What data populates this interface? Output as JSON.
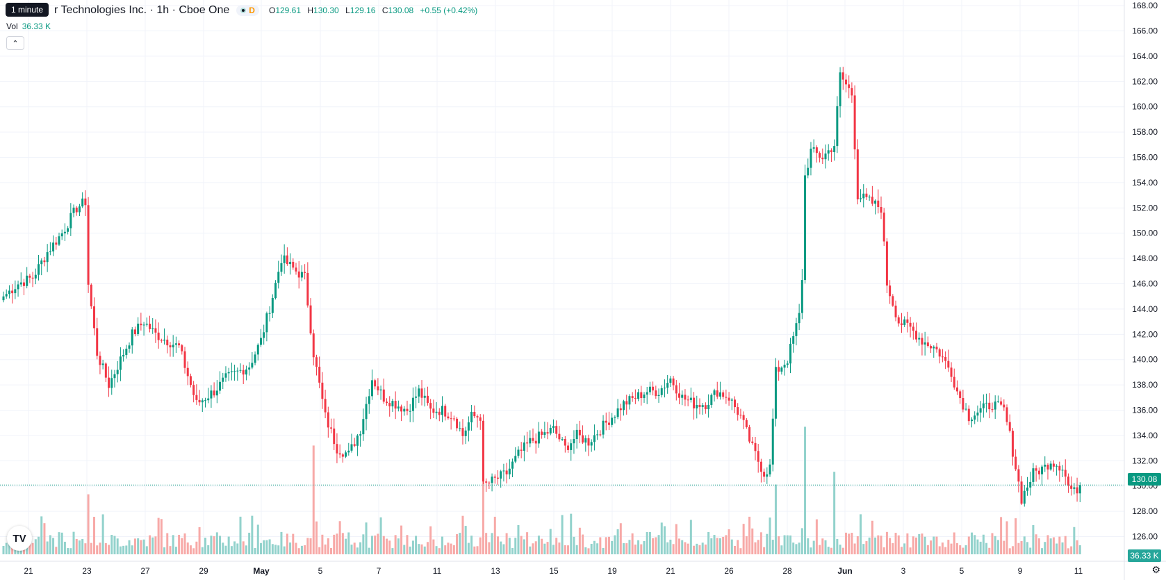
{
  "legend": {
    "symbol_name": "r Technologies Inc. · 1h · Cboe One",
    "tooltip": "1 minute",
    "status_letter": "D",
    "open_label": "O",
    "open": "129.61",
    "high_label": "H",
    "high": "130.30",
    "low_label": "L",
    "low": "129.16",
    "close_label": "C",
    "close": "130.08",
    "change": "+0.55 (+0.42%)"
  },
  "volume_legend": {
    "label": "Vol",
    "value": "36.33 K"
  },
  "price_tag": "130.08",
  "volume_tag": "36.33 K",
  "colors": {
    "up": "#089981",
    "down": "#f23645",
    "up_vol": "#92d2cc",
    "down_vol": "#f7a9a7",
    "grid": "#f0f3fa",
    "text": "#131722"
  },
  "icons": {
    "logo": "tradingview-logo-icon",
    "collapse": "chevron-up-icon",
    "settings": "gear-icon"
  },
  "chart_data": {
    "type": "candlestick",
    "y_axis_ticks": [
      "126.00",
      "128.00",
      "130.00",
      "132.00",
      "134.00",
      "136.00",
      "138.00",
      "140.00",
      "142.00",
      "144.00",
      "146.00",
      "148.00",
      "150.00",
      "152.00",
      "154.00",
      "156.00",
      "158.00",
      "160.00",
      "162.00",
      "164.00",
      "166.00",
      "168.00"
    ],
    "ylim": [
      124.6,
      168.2
    ],
    "x_axis_labels": [
      "21",
      "23",
      "27",
      "29",
      "May",
      "5",
      "7",
      "11",
      "13",
      "15",
      "19",
      "21",
      "26",
      "28",
      "Jun",
      "3",
      "5",
      "9",
      "11"
    ],
    "last_price": 130.08,
    "series": [
      {
        "name": "price",
        "kind": "ohlc",
        "anchors": [
          [
            0,
            145.0
          ],
          [
            5,
            146.0
          ],
          [
            10,
            146.5
          ],
          [
            15,
            148.5
          ],
          [
            20,
            150.0
          ],
          [
            25,
            152.0
          ],
          [
            28,
            152.5
          ],
          [
            29,
            146.0
          ],
          [
            32,
            140.5
          ],
          [
            36,
            138.0
          ],
          [
            40,
            140.0
          ],
          [
            44,
            142.0
          ],
          [
            48,
            143.0
          ],
          [
            52,
            142.0
          ],
          [
            56,
            141.5
          ],
          [
            60,
            141.0
          ],
          [
            66,
            136.5
          ],
          [
            72,
            137.5
          ],
          [
            76,
            138.5
          ],
          [
            80,
            139.0
          ],
          [
            84,
            139.5
          ],
          [
            88,
            141.5
          ],
          [
            92,
            145.0
          ],
          [
            95,
            148.0
          ],
          [
            100,
            147.0
          ],
          [
            103,
            146.5
          ],
          [
            106,
            140.5
          ],
          [
            110,
            135.5
          ],
          [
            114,
            133.0
          ],
          [
            118,
            132.5
          ],
          [
            122,
            134.5
          ],
          [
            126,
            138.5
          ],
          [
            130,
            137.0
          ],
          [
            134,
            136.5
          ],
          [
            138,
            136.0
          ],
          [
            142,
            137.5
          ],
          [
            146,
            136.0
          ],
          [
            150,
            136.0
          ],
          [
            154,
            135.5
          ],
          [
            157,
            134.0
          ],
          [
            160,
            135.5
          ],
          [
            163,
            135.5
          ],
          [
            164,
            130.0
          ],
          [
            168,
            130.5
          ],
          [
            172,
            131.0
          ],
          [
            176,
            132.5
          ],
          [
            180,
            133.5
          ],
          [
            184,
            134.0
          ],
          [
            188,
            134.5
          ],
          [
            192,
            133.0
          ],
          [
            196,
            134.0
          ],
          [
            200,
            133.5
          ],
          [
            204,
            134.5
          ],
          [
            208,
            135.5
          ],
          [
            212,
            136.5
          ],
          [
            216,
            137.0
          ],
          [
            220,
            137.5
          ],
          [
            224,
            137.5
          ],
          [
            228,
            138.5
          ],
          [
            232,
            137.0
          ],
          [
            236,
            136.5
          ],
          [
            240,
            136.5
          ],
          [
            244,
            137.5
          ],
          [
            248,
            137.0
          ],
          [
            252,
            135.5
          ],
          [
            256,
            133.0
          ],
          [
            260,
            131.0
          ],
          [
            262,
            131.5
          ],
          [
            264,
            139.0
          ],
          [
            268,
            140.0
          ],
          [
            272,
            143.5
          ],
          [
            273,
            146.5
          ],
          [
            274,
            154.5
          ],
          [
            276,
            156.5
          ],
          [
            280,
            156.0
          ],
          [
            284,
            157.0
          ],
          [
            286,
            162.5
          ],
          [
            290,
            161.0
          ],
          [
            292,
            153.0
          ],
          [
            296,
            152.5
          ],
          [
            300,
            152.0
          ],
          [
            302,
            146.0
          ],
          [
            306,
            143.0
          ],
          [
            310,
            142.5
          ],
          [
            314,
            141.5
          ],
          [
            318,
            141.0
          ],
          [
            320,
            140.5
          ],
          [
            324,
            139.0
          ],
          [
            326,
            137.5
          ],
          [
            330,
            135.5
          ],
          [
            334,
            136.0
          ],
          [
            338,
            136.5
          ],
          [
            342,
            136.0
          ],
          [
            344,
            134.0
          ],
          [
            346,
            131.5
          ],
          [
            348,
            129.0
          ],
          [
            352,
            131.0
          ],
          [
            356,
            131.5
          ],
          [
            358,
            132.0
          ],
          [
            362,
            131.5
          ],
          [
            364,
            130.0
          ],
          [
            366,
            129.5
          ],
          [
            368,
            130.08
          ]
        ],
        "notable_volume_bars": [
          {
            "i": 29,
            "value_k": 80
          },
          {
            "i": 106,
            "value_k": 145
          },
          {
            "i": 164,
            "value_k": 120
          },
          {
            "i": 264,
            "value_k": 93
          },
          {
            "i": 274,
            "value_k": 170
          },
          {
            "i": 284,
            "value_k": 110
          },
          {
            "i": 366,
            "value_k": 36.33
          }
        ]
      }
    ]
  }
}
